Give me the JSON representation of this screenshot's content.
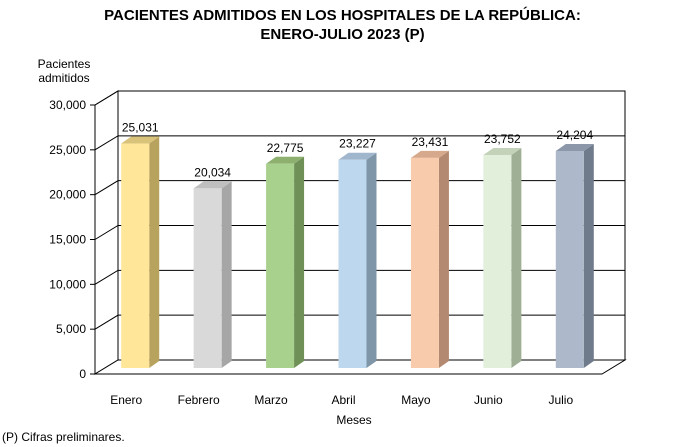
{
  "chart_data": {
    "type": "bar",
    "title_lines": [
      "PACIENTES ADMITIDOS EN LOS HOSPITALES DE LA REPÚBLICA:",
      "ENERO-JULIO 2023 (P)"
    ],
    "ylabel_lines": [
      "Pacientes",
      "admitidos"
    ],
    "xlabel": "Meses",
    "categories": [
      "Enero",
      "Febrero",
      "Marzo",
      "Abril",
      "Mayo",
      "Junio",
      "Julio"
    ],
    "values": [
      25031,
      20034,
      22775,
      23227,
      23431,
      23752,
      24204
    ],
    "value_labels": [
      "25,031",
      "20,034",
      "22,775",
      "23,227",
      "23,431",
      "23,752",
      "24,204"
    ],
    "ylim": [
      0,
      30000
    ],
    "yticks": [
      0,
      5000,
      10000,
      15000,
      20000,
      25000,
      30000
    ],
    "ytick_labels": [
      "0",
      "5,000",
      "10,000",
      "15,000",
      "20,000",
      "25,000",
      "30,000"
    ],
    "grid": true,
    "style": "3d",
    "colors": [
      "#FFE699",
      "#D9D9D9",
      "#A9D18E",
      "#BDD7EE",
      "#F8CBAD",
      "#E2EFDA",
      "#ADB9CA"
    ],
    "side_colors": [
      "#B8A35E",
      "#A6A6A6",
      "#6F9158",
      "#7F95A8",
      "#B38A71",
      "#9FAF95",
      "#6F7A8A"
    ],
    "top_colors": [
      "#D9C27A",
      "#BFBFBF",
      "#8DB06F",
      "#9FB6CC",
      "#D7A98C",
      "#C3D2B8",
      "#8C98AA"
    ],
    "footnote": "(P) Cifras  preliminares."
  }
}
